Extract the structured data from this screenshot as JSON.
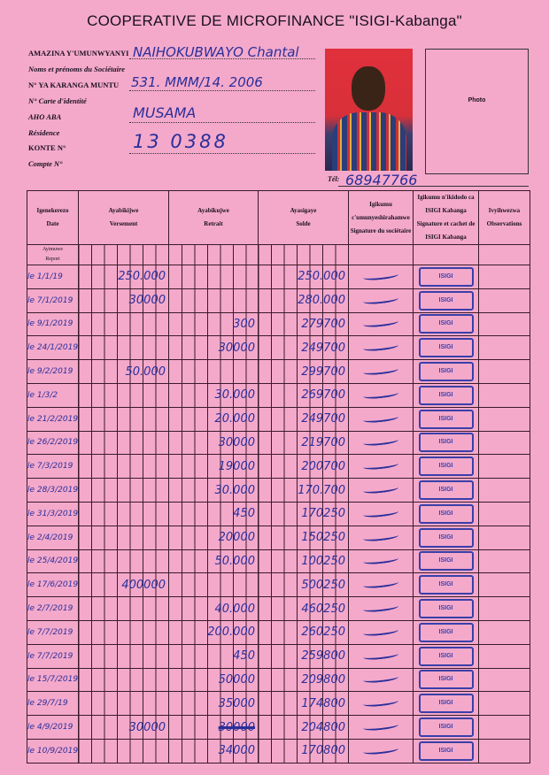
{
  "title": "COOPERATIVE DE MICROFINANCE \"ISIGI-Kabanga\"",
  "fields": {
    "name_label": "AMAZINA Y'UMUNWYANYI",
    "name_label_fr": "Noms et prénoms du Sociétaire",
    "name_value": "NAIHOKUBWAYO Chantal",
    "id_label": "N° YA KARANGA MUNTU",
    "id_label_fr": "N° Carte d'identité",
    "id_value": "531. MMM/14. 2006",
    "residence_label": "AHO ABA",
    "residence_label_fr": "Résidence",
    "residence_value": "MUSAMA",
    "account_label": "KONTE N°",
    "account_label_fr": "Compte N°",
    "account_value": "13 0388"
  },
  "photo_label": "Photo",
  "tel_label": "Tél:",
  "tel_value": "68947766",
  "table": {
    "headers": [
      {
        "rw": "Igenekerezo",
        "fr": "Date"
      },
      {
        "rw": "Ayabikijwe",
        "fr": "Versement"
      },
      {
        "rw": "Ayabikujwe",
        "fr": "Retrait"
      },
      {
        "rw": "Ayasigaye",
        "fr": "Solde"
      },
      {
        "rw": "Igikumu c'umunyeshirahamwe",
        "fr": "Signature du sociétaire"
      },
      {
        "rw": "Igikumu n'ikidodo ca ISIGI Kabanga",
        "fr": "Signature et cachet de ISIGI Kabanga"
      },
      {
        "rw": "Ivyihwezwa",
        "fr": "Observations"
      }
    ],
    "report_label_rw": "Ayimuwe",
    "report_label_fr": "Report",
    "stamp_text": "ISIGI",
    "rows": [
      {
        "date": "le 1/1/19",
        "versement": "250.000",
        "retrait": "",
        "solde": "250.000"
      },
      {
        "date": "le 7/1/2019",
        "versement": "30000",
        "retrait": "",
        "solde": "280.000"
      },
      {
        "date": "le 9/1/2019",
        "versement": "",
        "retrait": "300",
        "solde": "279700"
      },
      {
        "date": "le 24/1/2019",
        "versement": "",
        "retrait": "30000",
        "solde": "249700"
      },
      {
        "date": "le 9/2/2019",
        "versement": "50.000",
        "retrait": "",
        "solde": "299700"
      },
      {
        "date": "le 1/3/2",
        "versement": "",
        "retrait": "30.000",
        "solde": "269700"
      },
      {
        "date": "le 21/2/2019",
        "versement": "",
        "retrait": "20.000",
        "solde": "249700"
      },
      {
        "date": "le 26/2/2019",
        "versement": "",
        "retrait": "30000",
        "solde": "219700"
      },
      {
        "date": "le 7/3/2019",
        "versement": "",
        "retrait": "19000",
        "solde": "200700"
      },
      {
        "date": "le 28/3/2019",
        "versement": "",
        "retrait": "30.000",
        "solde": "170.700"
      },
      {
        "date": "le 31/3/2019",
        "versement": "",
        "retrait": "450",
        "solde": "170250"
      },
      {
        "date": "le 2/4/2019",
        "versement": "",
        "retrait": "20000",
        "solde": "150250"
      },
      {
        "date": "le 25/4/2019",
        "versement": "",
        "retrait": "50.000",
        "solde": "100250"
      },
      {
        "date": "le 17/6/2019",
        "versement": "400000",
        "retrait": "",
        "solde": "500250"
      },
      {
        "date": "le 2/7/2019",
        "versement": "",
        "retrait": "40.000",
        "solde": "460250"
      },
      {
        "date": "le 7/7/2019",
        "versement": "",
        "retrait": "200.000",
        "solde": "260250"
      },
      {
        "date": "le 7/7/2019",
        "versement": "",
        "retrait": "450",
        "solde": "259800"
      },
      {
        "date": "le 15/7/2019",
        "versement": "",
        "retrait": "50000",
        "solde": "209800"
      },
      {
        "date": "le 29/7/19",
        "versement": "",
        "retrait": "35000",
        "solde": "174800"
      },
      {
        "date": "le 4/9/2019",
        "versement": "30000",
        "retrait": "30000",
        "retrait_struck": true,
        "solde": "204800"
      },
      {
        "date": "le 10/9/2019",
        "versement": "",
        "retrait": "34000",
        "solde": "170800"
      }
    ]
  },
  "colors": {
    "paper": "#f4a9cb",
    "ink": "#2a2f9a",
    "stamp": "#3a3fa8"
  }
}
